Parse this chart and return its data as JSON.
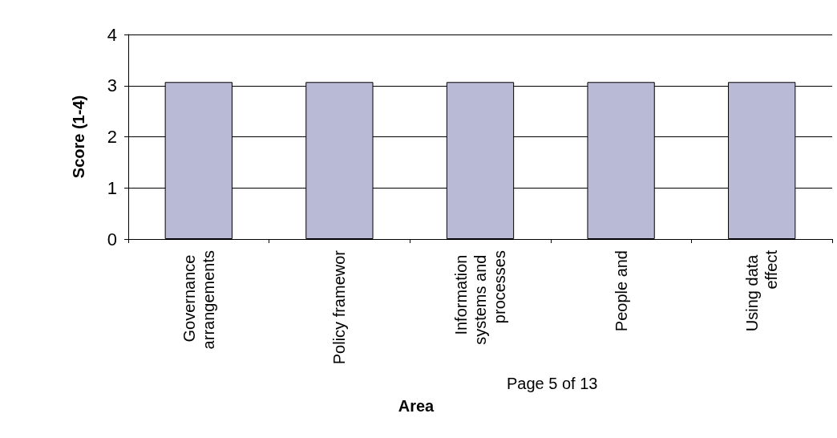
{
  "chart_data": {
    "type": "bar",
    "xlabel": "Area",
    "ylabel": "Score (1-4)",
    "categories": [
      "Governance arrangements",
      "Policy framewor",
      "Information systems and processes",
      "People and",
      "Using data effect"
    ],
    "values": [
      3.07,
      3.07,
      3.07,
      3.07,
      3.07
    ],
    "color": "#b8bad6",
    "ylim": [
      0,
      4
    ],
    "yticks": [
      0,
      1,
      2,
      3,
      4
    ],
    "grid": "y",
    "annotations": [
      "Page 5 of 13"
    ]
  }
}
